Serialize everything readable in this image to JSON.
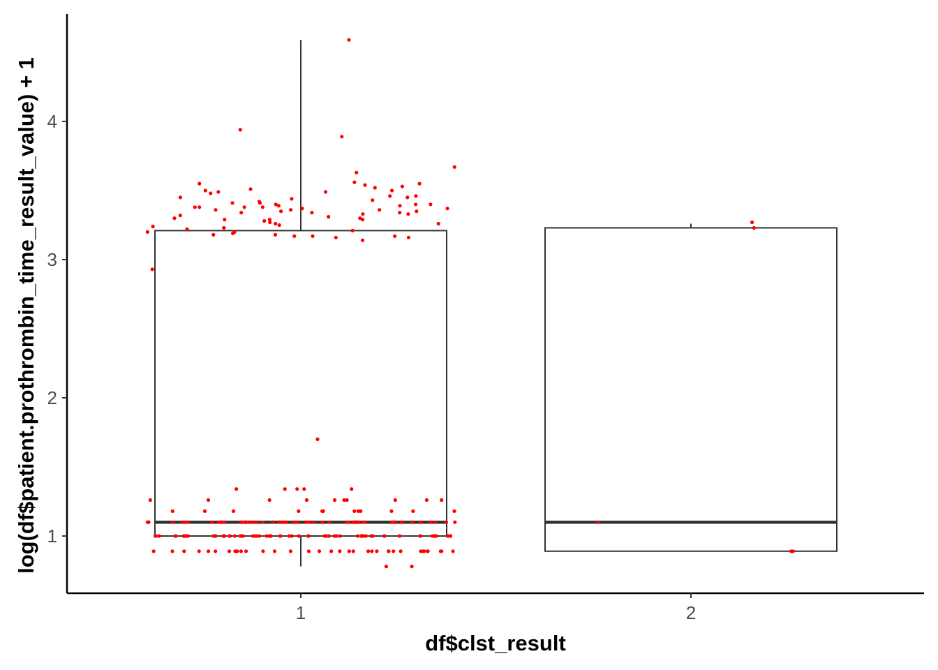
{
  "chart_data": {
    "type": "boxplot",
    "xlabel": "df$clst_result",
    "ylabel": "log(df$patient.prothrombin_time_result_value) + 1",
    "categories": [
      "1",
      "2"
    ],
    "y_ticks": [
      "1",
      "2",
      "3",
      "4"
    ],
    "ylim": [
      0.6,
      4.8
    ],
    "grid": false,
    "legend": "none",
    "colors": {
      "points": "#ff0000",
      "box": "#333333",
      "axis": "#000000"
    },
    "boxes": [
      {
        "category": "1",
        "whisker_low": 0.78,
        "q1": 1.0,
        "median": 1.1,
        "q3": 3.21,
        "whisker_high": 4.59
      },
      {
        "category": "2",
        "whisker_low": 0.89,
        "q1": 0.89,
        "median": 1.1,
        "q3": 3.23,
        "whisker_high": 3.26
      }
    ],
    "points": [
      {
        "category": "1",
        "values": [
          4.59,
          3.94,
          3.89,
          3.67,
          3.63,
          3.56,
          3.55,
          3.55,
          3.54,
          3.53,
          3.52,
          3.51,
          3.5,
          3.5,
          3.49,
          3.49,
          3.48,
          3.46,
          3.46,
          3.45,
          3.45,
          3.44,
          3.43,
          3.42,
          3.41,
          3.41,
          3.4,
          3.4,
          3.4,
          3.39,
          3.39,
          3.38,
          3.38,
          3.38,
          3.38,
          3.37,
          3.37,
          3.36,
          3.36,
          3.36,
          3.35,
          3.35,
          3.34,
          3.34,
          3.34,
          3.33,
          3.33,
          3.32,
          3.31,
          3.3,
          3.3,
          3.29,
          3.29,
          3.29,
          3.28,
          3.27,
          3.26,
          3.26,
          3.25,
          3.24,
          3.23,
          3.22,
          3.21,
          3.2,
          3.2,
          3.19,
          3.18,
          3.18,
          3.17,
          3.17,
          3.17,
          3.16,
          3.16,
          3.14,
          2.93,
          1.7,
          1.34,
          1.34,
          1.34,
          1.34,
          1.34,
          1.26,
          1.26,
          1.26,
          1.26,
          1.26,
          1.26,
          1.26,
          1.26,
          1.26,
          1.26,
          1.18,
          1.18,
          1.18,
          1.18,
          1.18,
          1.18,
          1.18,
          1.18,
          1.18,
          1.18,
          1.18,
          1.18,
          1.1,
          1.1,
          1.1,
          1.1,
          1.1,
          1.1,
          1.1,
          1.1,
          1.1,
          1.1,
          1.1,
          1.1,
          1.1,
          1.1,
          1.1,
          1.1,
          1.1,
          1.1,
          1.1,
          1.1,
          1.1,
          1.1,
          1.1,
          1.1,
          1.1,
          1.1,
          1.1,
          1.1,
          1.1,
          1.1,
          1.1,
          1.1,
          1.1,
          1.1,
          1.1,
          1.1,
          1.1,
          1.1,
          1.1,
          1.1,
          1.1,
          1.1,
          1.1,
          1.1,
          1.1,
          1.1,
          1.1,
          1.1,
          1.1,
          1.1,
          1.1,
          1.1,
          1.1,
          1.1,
          1.1,
          1.0,
          1.0,
          1.0,
          1.0,
          1.0,
          1.0,
          1.0,
          1.0,
          1.0,
          1.0,
          1.0,
          1.0,
          1.0,
          1.0,
          1.0,
          1.0,
          1.0,
          1.0,
          1.0,
          1.0,
          1.0,
          1.0,
          1.0,
          1.0,
          1.0,
          1.0,
          1.0,
          1.0,
          1.0,
          1.0,
          1.0,
          1.0,
          1.0,
          1.0,
          1.0,
          1.0,
          1.0,
          1.0,
          1.0,
          1.0,
          1.0,
          1.0,
          1.0,
          1.0,
          1.0,
          1.0,
          1.0,
          1.0,
          1.0,
          1.0,
          1.0,
          1.0,
          1.0,
          1.0,
          1.0,
          1.0,
          1.0,
          1.0,
          1.0,
          1.0,
          0.89,
          0.89,
          0.89,
          0.89,
          0.89,
          0.89,
          0.89,
          0.89,
          0.89,
          0.89,
          0.89,
          0.89,
          0.89,
          0.89,
          0.89,
          0.89,
          0.89,
          0.89,
          0.89,
          0.89,
          0.89,
          0.89,
          0.89,
          0.89,
          0.89,
          0.89,
          0.89,
          0.89,
          0.89,
          0.89,
          0.89,
          0.89,
          0.89,
          0.89,
          0.89,
          0.78,
          0.78
        ]
      },
      {
        "category": "2",
        "values": [
          3.27,
          3.23,
          1.1,
          0.89,
          0.89
        ]
      }
    ]
  }
}
